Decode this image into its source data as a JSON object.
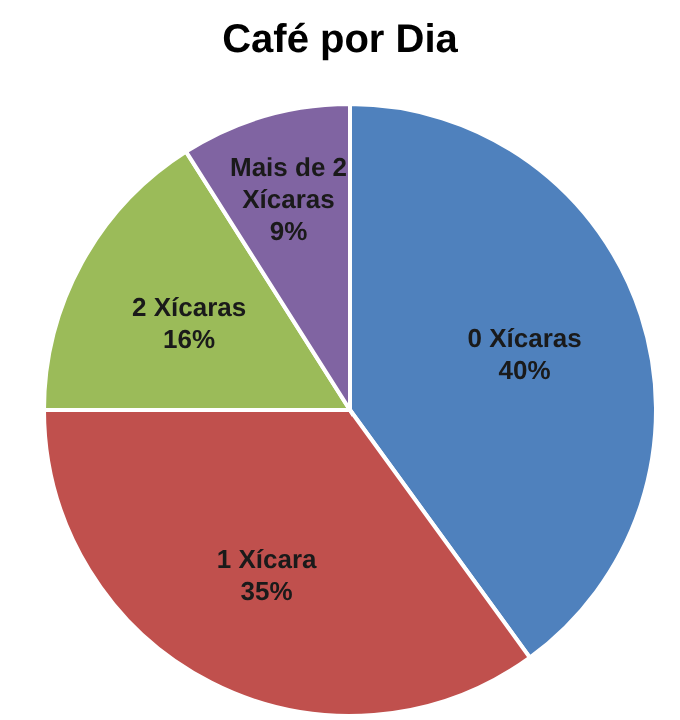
{
  "chart_data": {
    "type": "pie",
    "title": "Café por Dia",
    "categories": [
      "0 Xícaras",
      "1 Xícara",
      "2 Xícaras",
      "Mais de 2 Xícaras"
    ],
    "values": [
      40,
      35,
      16,
      9
    ],
    "value_labels": [
      "40%",
      "35%",
      "16%",
      "9%"
    ],
    "colors": [
      "#4f81bd",
      "#c0504d",
      "#9bbb59",
      "#8064a2"
    ]
  }
}
